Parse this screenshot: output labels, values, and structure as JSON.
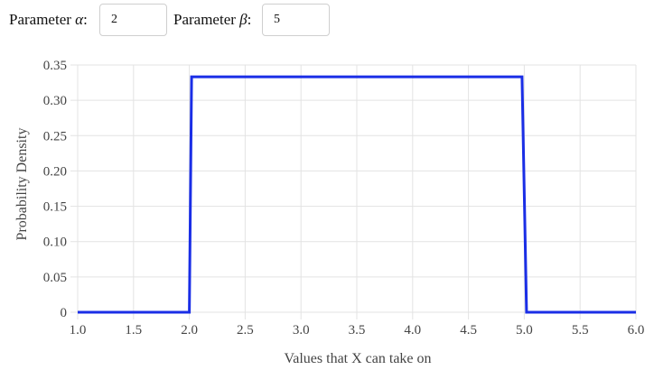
{
  "controls": {
    "alpha": {
      "label_prefix": "Parameter ",
      "symbol": "α",
      "label_suffix": ":",
      "value": "2"
    },
    "beta": {
      "label_prefix": "Parameter ",
      "symbol": "β",
      "label_suffix": ":",
      "value": "5"
    }
  },
  "chart_data": {
    "type": "line",
    "xlabel": "Values that X can take on",
    "ylabel": "Probability Density",
    "xlim": [
      1.0,
      6.0
    ],
    "ylim": [
      0,
      0.35
    ],
    "x_ticks": [
      "1.0",
      "1.5",
      "2.0",
      "2.5",
      "3.0",
      "3.5",
      "4.0",
      "4.5",
      "5.0",
      "5.5",
      "6.0"
    ],
    "y_ticks": [
      "0",
      "0.05",
      "0.10",
      "0.15",
      "0.20",
      "0.25",
      "0.30",
      "0.35"
    ],
    "grid": true,
    "series": [
      {
        "color": "#1a2ee6",
        "x": [
          1.0,
          2.0,
          2.02,
          4.98,
          5.02,
          6.0
        ],
        "y": [
          0,
          0,
          0.3333,
          0.3333,
          0,
          0
        ]
      }
    ]
  }
}
